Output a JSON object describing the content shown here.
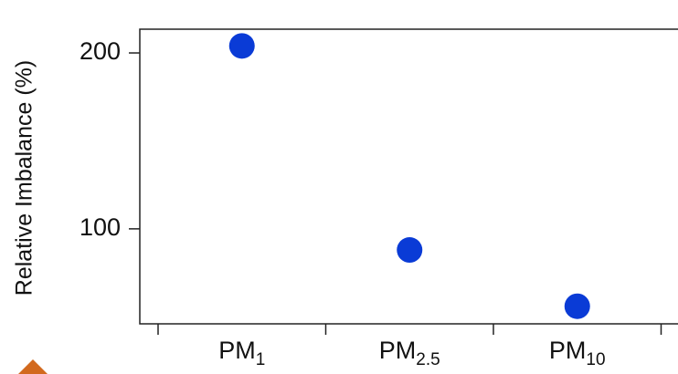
{
  "chart_data": {
    "type": "scatter",
    "y_label": "Relative Imbalance (%)",
    "categories": [
      "PM1",
      "PM2.5",
      "PM10"
    ],
    "values": [
      204,
      88,
      56
    ],
    "color": "#0a3bd6",
    "ylim": [
      46,
      213.5
    ],
    "yticks": [
      100,
      200
    ]
  }
}
